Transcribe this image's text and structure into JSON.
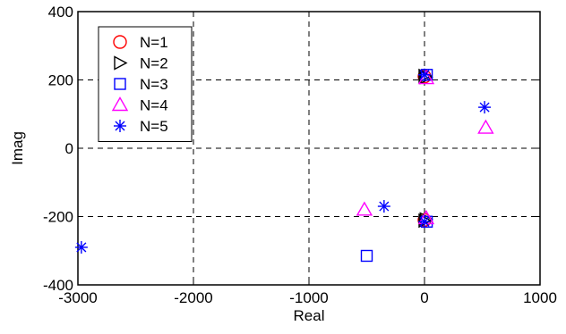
{
  "chart_data": {
    "type": "scatter",
    "title": "",
    "xlabel": "Real",
    "ylabel": "Imag",
    "xlim": [
      -3000,
      1000
    ],
    "ylim": [
      -400,
      400
    ],
    "xticks": [
      -3000,
      -2000,
      -1000,
      0,
      1000
    ],
    "yticks": [
      -400,
      -200,
      0,
      200,
      400
    ],
    "xtick_labels": [
      "-3000",
      "-2000",
      "-1000",
      "0",
      "1000"
    ],
    "ytick_labels": [
      "-400",
      "-200",
      "0",
      "200",
      "400"
    ],
    "grid": "dashed",
    "legend_position": "top-left",
    "series": [
      {
        "name": "N=1",
        "marker": "circle",
        "color": "#ff0000",
        "points": [
          [
            0,
            210
          ],
          [
            0,
            -210
          ]
        ]
      },
      {
        "name": "N=2",
        "marker": "triangle-right",
        "color": "#000000",
        "points": [
          [
            0,
            212
          ],
          [
            10,
            208
          ],
          [
            0,
            -212
          ],
          [
            10,
            -208
          ]
        ]
      },
      {
        "name": "N=3",
        "marker": "square",
        "color": "#0000ff",
        "points": [
          [
            20,
            215
          ],
          [
            20,
            -215
          ],
          [
            -500,
            -315
          ]
        ]
      },
      {
        "name": "N=4",
        "marker": "triangle-up",
        "color": "#ff00ff",
        "points": [
          [
            15,
            205
          ],
          [
            15,
            -205
          ],
          [
            530,
            60
          ],
          [
            -520,
            -180
          ]
        ]
      },
      {
        "name": "N=5",
        "marker": "asterisk",
        "color": "#0000ff",
        "points": [
          [
            0,
            215
          ],
          [
            0,
            -215
          ],
          [
            520,
            120
          ],
          [
            -350,
            -170
          ],
          [
            -2970,
            -290
          ]
        ]
      }
    ]
  }
}
